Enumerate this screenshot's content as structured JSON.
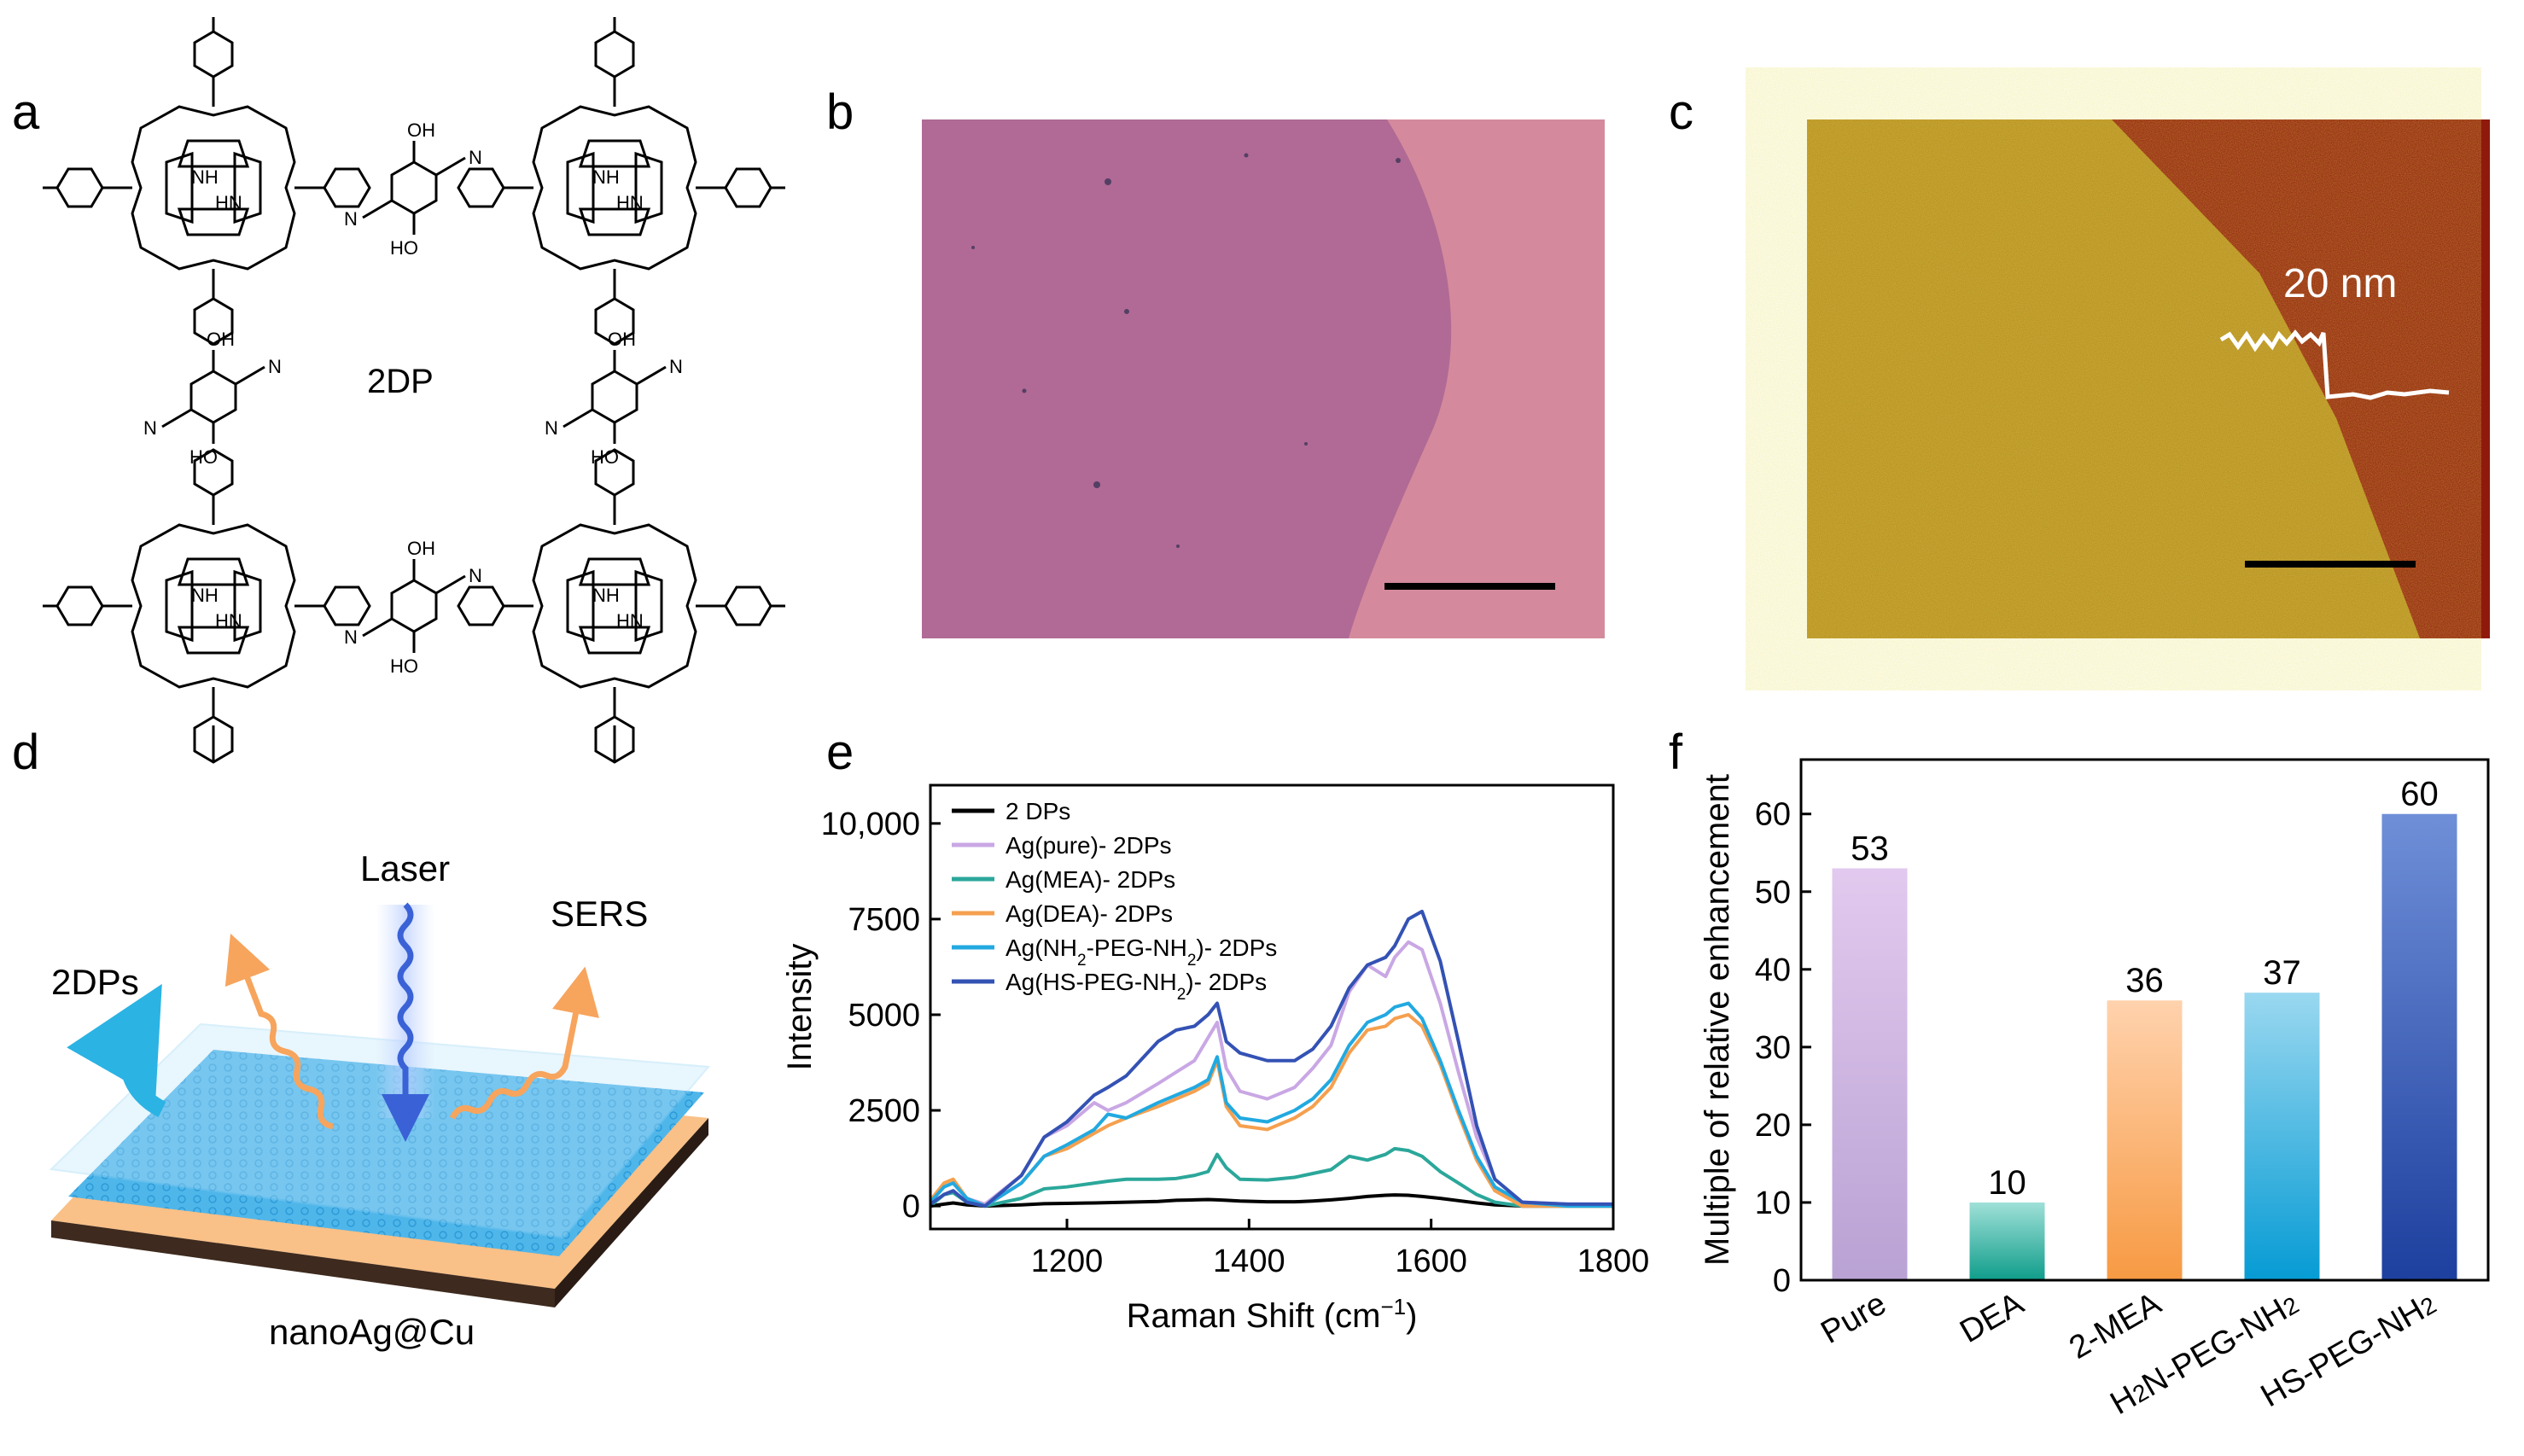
{
  "panels": {
    "a": {
      "label": "a",
      "center_label": "2DP",
      "atoms": {
        "nh": "NH",
        "hn": "HN",
        "n": "N",
        "oh": "OH",
        "ho": "HO"
      },
      "bond_dot": "·"
    },
    "b": {
      "label": "b"
    },
    "c": {
      "label": "c",
      "height_label": "20 nm"
    },
    "d": {
      "label": "d",
      "laser": "Laser",
      "sers": "SERS",
      "layer": "2DPs",
      "substrate": "nanoAg@Cu"
    },
    "e": {
      "label": "e"
    },
    "f": {
      "label": "f"
    }
  },
  "colors": {
    "optical_film": "#b06a95",
    "optical_substrate": "#d48a9c",
    "afm_film": "#b58a1f",
    "afm_substrate": "#8f1a0c",
    "laser": "#3a62d6",
    "emission": "#f7a45d",
    "film": "#4fb6ea",
    "substrate_top": "#f9c087",
    "substrate_side": "#3e2a1e"
  },
  "chart_data": [
    {
      "type": "line",
      "panel": "e",
      "xlabel": "Raman Shift (cm",
      "xlabel_sup": "−1",
      "xlabel_end": ")",
      "ylabel": "Intensity",
      "xlim": [
        1050,
        1800
      ],
      "ylim": [
        -600,
        11000
      ],
      "xticks": [
        1200,
        1400,
        1600,
        1800
      ],
      "xtick_labels": [
        "1200",
        "1400",
        "1600",
        "1800"
      ],
      "yticks": [
        0,
        2500,
        5000,
        7500,
        10000
      ],
      "ytick_labels": [
        "0",
        "2500",
        "5000",
        "7500",
        "10,000"
      ],
      "legend_pos": "top-left",
      "legend": [
        {
          "label": "2 DPs"
        },
        {
          "label": "Ag(pure)- 2DPs"
        },
        {
          "label": "Ag(MEA)- 2DPs"
        },
        {
          "label": "Ag(DEA)- 2DPs"
        },
        {
          "label": "Ag(NH",
          "sub": "2",
          "mid": "-PEG-NH",
          "sub2": "2",
          "rest": ")- 2DPs"
        },
        {
          "label": "Ag(HS-PEG-NH",
          "sub": "2",
          "mid": "",
          "sub2": "",
          "rest": ")- 2DPs"
        }
      ],
      "x": [
        1050,
        1065,
        1075,
        1090,
        1110,
        1150,
        1175,
        1200,
        1230,
        1245,
        1265,
        1300,
        1320,
        1340,
        1355,
        1365,
        1375,
        1390,
        1420,
        1450,
        1470,
        1490,
        1510,
        1530,
        1550,
        1560,
        1575,
        1590,
        1610,
        1630,
        1650,
        1670,
        1700,
        1750,
        1800
      ],
      "series": [
        {
          "name": "2 DPs",
          "color": "#000000",
          "values": [
            0,
            50,
            80,
            30,
            0,
            30,
            60,
            70,
            80,
            90,
            100,
            120,
            150,
            160,
            170,
            160,
            150,
            130,
            110,
            110,
            130,
            160,
            200,
            250,
            280,
            290,
            280,
            250,
            200,
            140,
            80,
            30,
            0,
            0,
            0
          ]
        },
        {
          "name": "Ag(pure)- 2DPs",
          "color": "#c9a7e4",
          "values": [
            100,
            500,
            600,
            200,
            50,
            800,
            1800,
            2100,
            2700,
            2500,
            2700,
            3200,
            3500,
            3800,
            4400,
            4800,
            3600,
            3000,
            2800,
            3100,
            3600,
            4200,
            5600,
            6300,
            6000,
            6500,
            6900,
            6700,
            5300,
            3500,
            1800,
            700,
            100,
            50,
            50
          ]
        },
        {
          "name": "Ag(MEA)- 2DPs",
          "color": "#2ba79a",
          "values": [
            0,
            300,
            350,
            100,
            0,
            200,
            450,
            500,
            600,
            650,
            700,
            700,
            720,
            800,
            900,
            1350,
            1000,
            700,
            680,
            750,
            850,
            950,
            1300,
            1200,
            1350,
            1500,
            1450,
            1300,
            900,
            600,
            300,
            100,
            0,
            0,
            0
          ]
        },
        {
          "name": "Ag(DEA)- 2DPs",
          "color": "#f5a04f",
          "values": [
            150,
            600,
            700,
            200,
            0,
            600,
            1300,
            1500,
            1900,
            2100,
            2300,
            2600,
            2800,
            3000,
            3200,
            3800,
            2600,
            2100,
            2000,
            2300,
            2600,
            3100,
            4000,
            4600,
            4700,
            4900,
            5000,
            4700,
            3700,
            2400,
            1200,
            400,
            0,
            0,
            0
          ]
        },
        {
          "name": "Ag(NH2-PEG-NH2)- 2DPs",
          "color": "#22a9e0",
          "values": [
            100,
            500,
            600,
            200,
            0,
            600,
            1300,
            1600,
            2000,
            2400,
            2300,
            2700,
            2900,
            3100,
            3300,
            3900,
            2700,
            2300,
            2200,
            2500,
            2800,
            3300,
            4200,
            4800,
            5000,
            5200,
            5300,
            4900,
            3800,
            2500,
            1300,
            500,
            100,
            0,
            0
          ]
        },
        {
          "name": "Ag(HS-PEG-NH2)- 2DPs",
          "color": "#3452b4",
          "values": [
            50,
            300,
            400,
            100,
            0,
            800,
            1800,
            2200,
            2900,
            3100,
            3400,
            4300,
            4600,
            4700,
            5000,
            5300,
            4300,
            4000,
            3800,
            3800,
            4100,
            4700,
            5700,
            6300,
            6500,
            6800,
            7500,
            7700,
            6400,
            4300,
            2100,
            700,
            100,
            50,
            50
          ]
        }
      ]
    },
    {
      "type": "bar",
      "panel": "f",
      "ylabel": "Multiple of relative enhancement",
      "ylim": [
        0,
        67
      ],
      "yticks": [
        0,
        10,
        20,
        30,
        40,
        50,
        60
      ],
      "ytick_labels": [
        "0",
        "10",
        "20",
        "30",
        "40",
        "50",
        "60"
      ],
      "categories": [
        "Pure",
        "DEA",
        "2-MEA",
        "H2N-PEG-NH2",
        "HS-PEG-NH2"
      ],
      "category_labels": [
        {
          "pre": "Pure",
          "sub": "",
          "mid": "",
          "sub2": ""
        },
        {
          "pre": "DEA",
          "sub": "",
          "mid": "",
          "sub2": ""
        },
        {
          "pre": "2-MEA",
          "sub": "",
          "mid": "",
          "sub2": ""
        },
        {
          "pre": "H",
          "sub": "2",
          "mid": "N-PEG-NH",
          "sub2": "2"
        },
        {
          "pre": "HS-PEG-NH",
          "sub": "2",
          "mid": "",
          "sub2": ""
        }
      ],
      "values": [
        53,
        10,
        36,
        37,
        60
      ],
      "value_labels": [
        "53",
        "10",
        "36",
        "37",
        "60"
      ],
      "bar_colors": [
        {
          "top": "#e2c9ee",
          "bottom": "#b9a2d4"
        },
        {
          "top": "#9fe0d8",
          "bottom": "#0f9d8a"
        },
        {
          "top": "#ffd2ad",
          "bottom": "#f79a43"
        },
        {
          "top": "#9ad8f0",
          "bottom": "#069bd4"
        },
        {
          "top": "#6f8fd8",
          "bottom": "#1d3f9e"
        }
      ]
    }
  ]
}
